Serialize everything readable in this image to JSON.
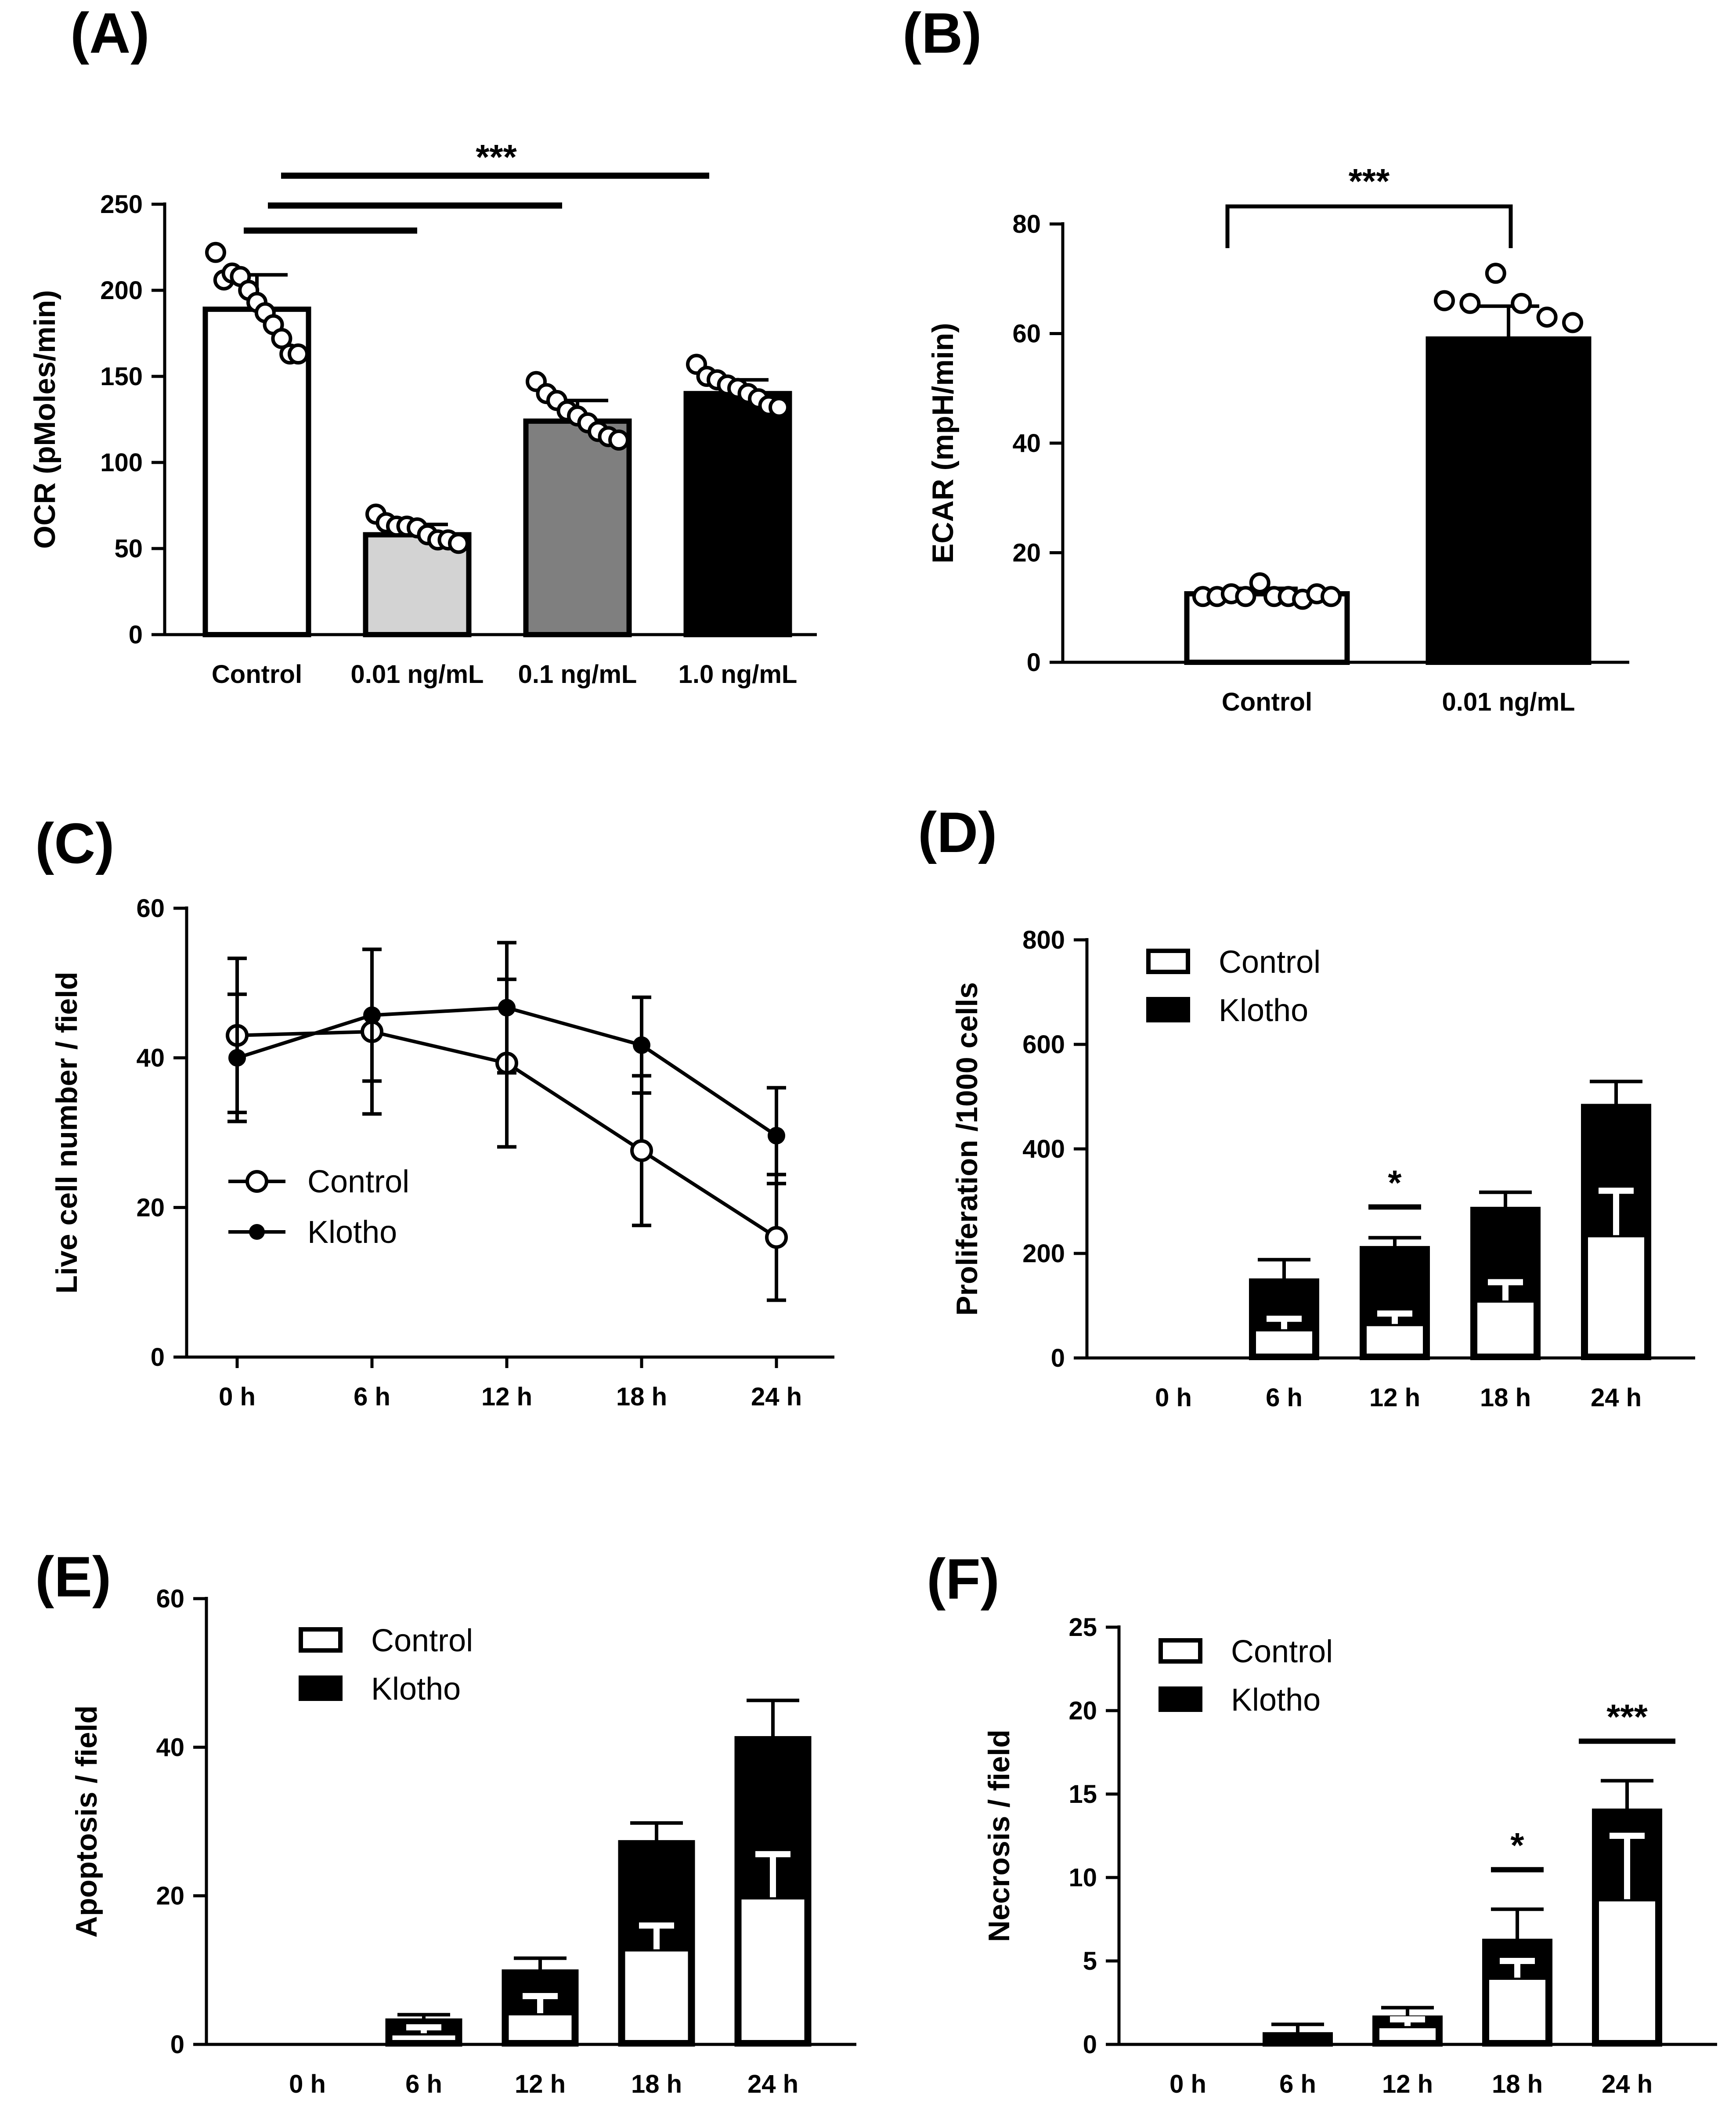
{
  "chart_data": [
    {
      "panel": "(A)",
      "type": "bar",
      "ylabel": "OCR (pMoles/min)",
      "ylim": [
        0,
        250
      ],
      "yticks": [
        0,
        50,
        100,
        150,
        200,
        250
      ],
      "categories": [
        "Control",
        "0.01 ng/mL",
        "0.1 ng/mL",
        "1.0 ng/mL"
      ],
      "values": [
        189,
        58,
        124,
        140
      ],
      "errors": [
        20,
        6,
        12,
        8
      ],
      "bar_colors": [
        "#ffffff",
        "#d3d3d3",
        "#7f7f7f",
        "#000000"
      ],
      "points": [
        [
          222,
          206,
          210,
          208,
          200,
          193,
          187,
          180,
          172,
          163,
          163
        ],
        [
          70,
          65,
          63,
          63,
          62,
          58,
          55,
          55,
          53
        ],
        [
          147,
          140,
          136,
          130,
          127,
          123,
          118,
          115,
          113
        ],
        [
          157,
          150,
          148,
          145,
          143,
          140,
          137,
          133,
          132
        ]
      ],
      "significance": [
        {
          "text": "***",
          "from": 0,
          "to": 3
        }
      ],
      "comparison_lines": [
        {
          "from": 0,
          "to": 1
        },
        {
          "from": 0,
          "to": 2
        },
        {
          "from": 0,
          "to": 3
        }
      ]
    },
    {
      "panel": "(B)",
      "type": "bar",
      "ylabel": "ECAR (mpH/min)",
      "ylim": [
        0,
        80
      ],
      "yticks": [
        0,
        20,
        40,
        60,
        80
      ],
      "categories": [
        "Control",
        "0.01 ng/mL"
      ],
      "values": [
        12.5,
        59
      ],
      "errors": [
        1,
        6
      ],
      "bar_colors": [
        "#ffffff",
        "#000000"
      ],
      "points": [
        [
          12,
          12,
          12.5,
          12,
          14.5,
          12,
          12,
          11.5,
          12.5,
          12
        ],
        [
          66,
          65.5,
          71,
          65.5,
          63,
          62
        ]
      ],
      "significance": [
        {
          "text": "***",
          "from": 0,
          "to": 1
        }
      ]
    },
    {
      "panel": "(C)",
      "type": "line",
      "ylabel": "Live cell number / field",
      "ylim": [
        0,
        60
      ],
      "yticks": [
        0,
        20,
        40,
        60
      ],
      "categories": [
        "0 h",
        "6 h",
        "12 h",
        "18 h",
        "24 h"
      ],
      "series": [
        {
          "name": "Control",
          "marker": "open",
          "values": [
            43,
            43.5,
            39.3,
            27.6,
            16
          ],
          "errors": [
            10.3,
            11,
            11.2,
            10,
            8.4
          ]
        },
        {
          "name": "Klotho",
          "marker": "filled",
          "values": [
            40,
            45.7,
            46.7,
            41.7,
            29.6
          ],
          "errors": [
            8.5,
            8.8,
            8.7,
            6.4,
            6.4
          ]
        }
      ],
      "legend": "middle-left"
    },
    {
      "panel": "(D)",
      "type": "bar",
      "stacked": true,
      "ylabel": "Proliferation /1000 cells",
      "ylim": [
        0,
        800
      ],
      "yticks": [
        0,
        200,
        400,
        600,
        800
      ],
      "categories": [
        "0 h",
        "6 h",
        "12 h",
        "18 h",
        "24 h"
      ],
      "series": [
        {
          "name": "Control",
          "color": "#ffffff",
          "values": [
            0,
            55,
            65,
            110,
            235
          ],
          "errors": [
            0,
            20,
            20,
            35,
            85
          ]
        },
        {
          "name": "Klotho",
          "color": "#000000",
          "values": [
            0,
            148,
            210,
            285,
            482
          ],
          "errors": [
            0,
            40,
            20,
            32,
            47
          ]
        }
      ],
      "legend": "top-left",
      "significance": [
        {
          "text": "*",
          "category": 2
        }
      ]
    },
    {
      "panel": "(E)",
      "type": "bar",
      "stacked": true,
      "ylabel": "Apoptosis / field",
      "ylim": [
        0,
        60
      ],
      "yticks": [
        0,
        20,
        40,
        60
      ],
      "categories": [
        "0 h",
        "6 h",
        "12 h",
        "18 h",
        "24 h"
      ],
      "series": [
        {
          "name": "Control",
          "color": "#ffffff",
          "values": [
            0,
            1.5,
            4.2,
            12.8,
            19.8
          ],
          "errors": [
            0,
            0.8,
            2.3,
            3.2,
            5.8
          ]
        },
        {
          "name": "Klotho",
          "color": "#000000",
          "values": [
            0,
            3.2,
            9.8,
            27.2,
            41.2
          ],
          "errors": [
            0,
            0.8,
            1.8,
            2.6,
            5.1
          ]
        }
      ],
      "legend": "top-left"
    },
    {
      "panel": "(F)",
      "type": "bar",
      "stacked": true,
      "ylabel": "Necrosis / field",
      "ylim": [
        0,
        25
      ],
      "yticks": [
        0,
        5,
        10,
        15,
        20,
        25
      ],
      "categories": [
        "0 h",
        "6 h",
        "12 h",
        "18 h",
        "24 h"
      ],
      "series": [
        {
          "name": "Control",
          "color": "#ffffff",
          "values": [
            0,
            0,
            1.1,
            4,
            8.7
          ],
          "errors": [
            0,
            0.2,
            0.4,
            1,
            3.8
          ]
        },
        {
          "name": "Klotho",
          "color": "#000000",
          "values": [
            0,
            0.6,
            1.6,
            6.2,
            14
          ],
          "errors": [
            0,
            0.6,
            0.6,
            1.9,
            1.8
          ]
        }
      ],
      "legend": "top-left",
      "significance": [
        {
          "text": "*",
          "category": 3
        },
        {
          "text": "***",
          "category": 4
        }
      ]
    }
  ]
}
